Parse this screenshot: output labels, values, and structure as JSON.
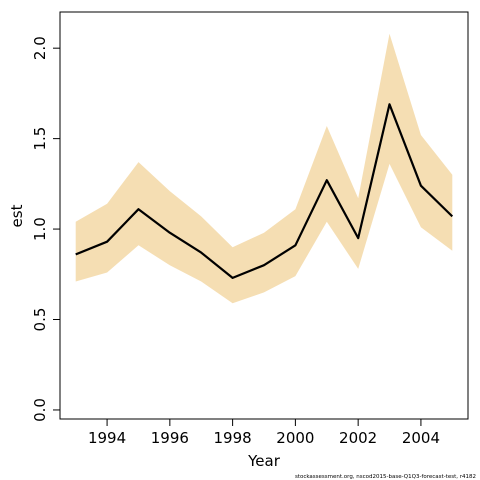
{
  "chart_data": {
    "type": "line",
    "xlabel": "Year",
    "ylabel": "est",
    "footnote": "stockassessment.org, nscod2015-base-Q1Q3-forecast-test, r4182",
    "xlim": [
      1992.5,
      2005.5
    ],
    "ylim": [
      -0.05,
      2.2
    ],
    "x_ticks": [
      1994,
      1996,
      1998,
      2000,
      2002,
      2004
    ],
    "y_ticks": [
      0.0,
      0.5,
      1.0,
      1.5,
      2.0
    ],
    "y_tick_labels": [
      "0.0",
      "0.5",
      "1.0",
      "1.5",
      "2.0"
    ],
    "grid": false,
    "colors": {
      "line": "#000000",
      "band": "#f5deb3"
    },
    "series": [
      {
        "x": [
          1993,
          1994,
          1995,
          1996,
          1997,
          1998,
          1999,
          2000,
          2001,
          2002,
          2003,
          2004,
          2005
        ],
        "values": [
          0.86,
          0.93,
          1.11,
          0.98,
          0.87,
          0.73,
          0.8,
          0.91,
          1.27,
          0.95,
          1.69,
          1.24,
          1.07
        ],
        "lower": [
          0.71,
          0.76,
          0.91,
          0.8,
          0.71,
          0.59,
          0.65,
          0.74,
          1.04,
          0.78,
          1.36,
          1.01,
          0.88
        ],
        "upper": [
          1.04,
          1.14,
          1.37,
          1.21,
          1.07,
          0.9,
          0.98,
          1.11,
          1.57,
          1.17,
          2.08,
          1.52,
          1.3
        ]
      }
    ]
  }
}
